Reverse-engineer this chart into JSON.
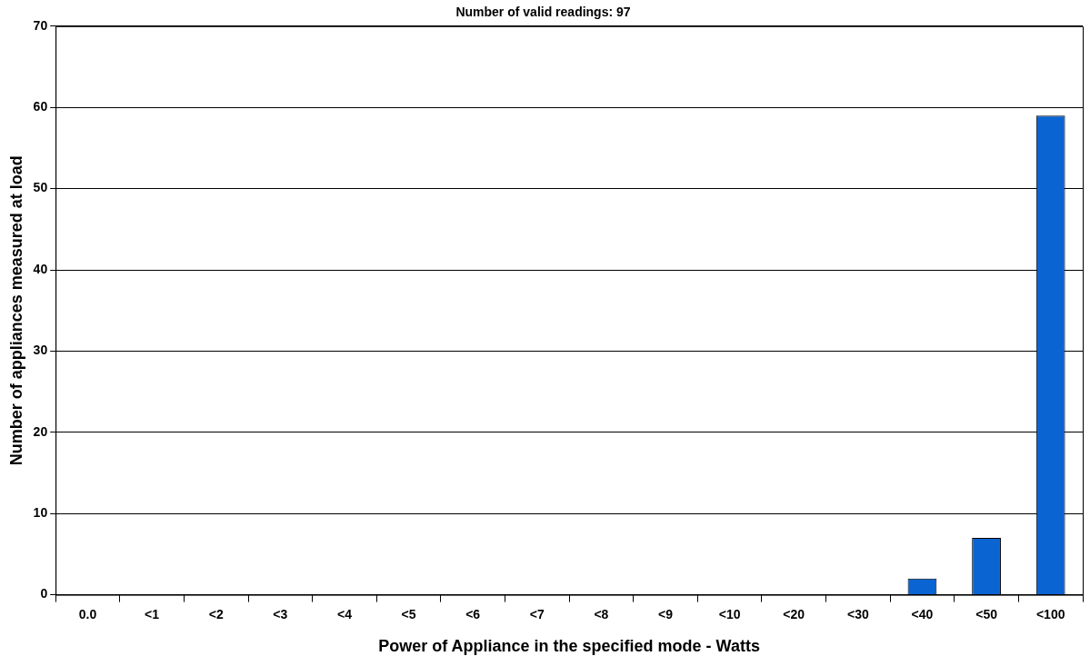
{
  "chart_data": {
    "type": "bar",
    "title": "Number of valid readings: 97",
    "xlabel": "Power of Appliance in the specified mode - Watts",
    "ylabel": "Number of appliances measured at load",
    "categories": [
      "0.0",
      "<1",
      "<2",
      "<3",
      "<4",
      "<5",
      "<6",
      "<7",
      "<8",
      "<9",
      "<10",
      "<20",
      "<30",
      "<40",
      "<50",
      "<100"
    ],
    "values": [
      0,
      0,
      0,
      0,
      0,
      0,
      0,
      0,
      0,
      0,
      0,
      0,
      0,
      2,
      7,
      59
    ],
    "color": "#0a64d2",
    "ylim": [
      0,
      70
    ],
    "yticks": [
      0,
      10,
      20,
      30,
      40,
      50,
      60,
      70
    ],
    "grid": "y",
    "legend": false
  }
}
